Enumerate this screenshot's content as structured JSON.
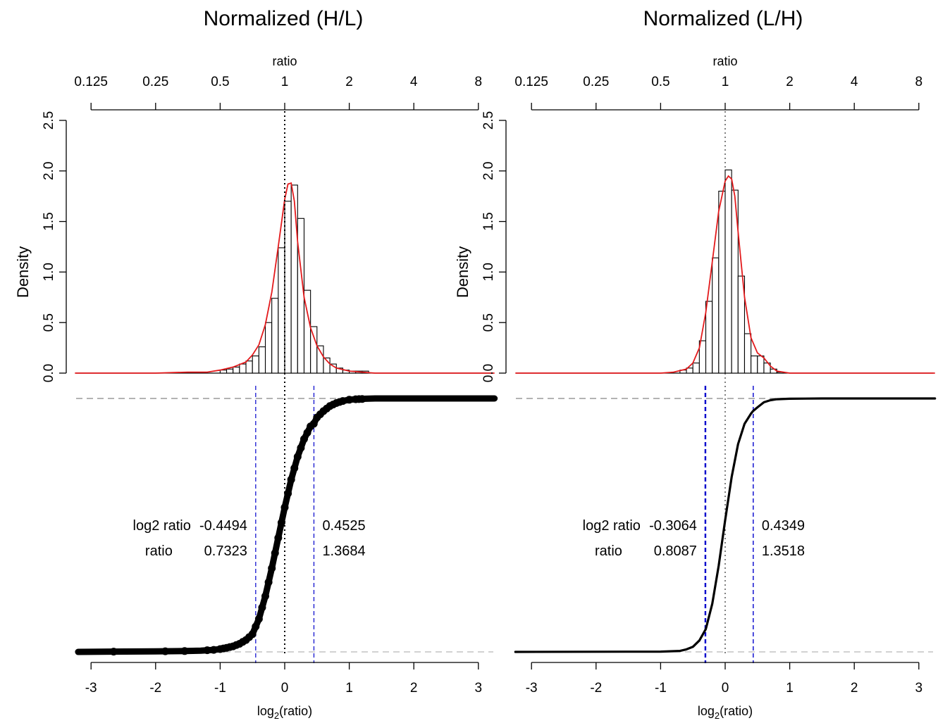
{
  "chart_data": [
    {
      "type": "histogram-with-density",
      "panel": "left",
      "title": "Normalized (H/L)",
      "top_axis_label": "ratio",
      "top_axis_ticks": [
        "0.125",
        "0.25",
        "0.5",
        "1",
        "2",
        "4",
        "8"
      ],
      "xlabel_base": "log",
      "xlabel_sub": "2",
      "xlabel_paren": "(ratio)",
      "x_ticks": [
        -3,
        -2,
        -1,
        0,
        1,
        2,
        3
      ],
      "xlim": [
        -3.25,
        3.25
      ],
      "ylabel": "Density",
      "y_ticks": [
        "0.0",
        "0.5",
        "1.0",
        "1.5",
        "2.0",
        "2.5"
      ],
      "ylim": [
        0,
        2.5
      ],
      "bin_width": 0.1,
      "bin_left_edges": [
        -1.0,
        -0.9,
        -0.8,
        -0.7,
        -0.6,
        -0.5,
        -0.4,
        -0.3,
        -0.2,
        -0.1,
        0.0,
        0.1,
        0.2,
        0.3,
        0.4,
        0.5,
        0.6,
        0.7,
        0.8,
        0.9,
        1.0,
        1.1,
        1.2
      ],
      "hist_density": [
        0.03,
        0.04,
        0.06,
        0.09,
        0.12,
        0.17,
        0.26,
        0.5,
        0.74,
        1.24,
        1.7,
        1.86,
        1.53,
        0.82,
        0.46,
        0.27,
        0.15,
        0.09,
        0.05,
        0.03,
        0.02,
        0.02,
        0.02
      ],
      "density_curve": {
        "x": [
          -3.25,
          -2.0,
          -1.5,
          -1.2,
          -1.0,
          -0.8,
          -0.6,
          -0.5,
          -0.4,
          -0.3,
          -0.2,
          -0.1,
          0.0,
          0.05,
          0.1,
          0.15,
          0.2,
          0.3,
          0.4,
          0.5,
          0.6,
          0.7,
          0.8,
          1.0,
          1.2,
          1.4,
          3.25
        ],
        "y": [
          0.0,
          0.0,
          0.01,
          0.01,
          0.03,
          0.06,
          0.11,
          0.18,
          0.28,
          0.48,
          0.8,
          1.25,
          1.72,
          1.87,
          1.88,
          1.7,
          1.3,
          0.75,
          0.45,
          0.27,
          0.16,
          0.09,
          0.05,
          0.02,
          0.01,
          0.0,
          0.0
        ]
      },
      "density_color": "#e31a1c",
      "cdf_points": {
        "x": [
          -3.2,
          -2.7,
          -2.0,
          -1.6,
          -1.3,
          -1.1,
          -1.0,
          -0.9,
          -0.8,
          -0.7,
          -0.6,
          -0.5,
          -0.45,
          -0.4,
          -0.3,
          -0.2,
          -0.1,
          0.0,
          0.1,
          0.2,
          0.3,
          0.4,
          0.45,
          0.5,
          0.6,
          0.7,
          0.8,
          0.9,
          1.0,
          1.1,
          1.2,
          1.25,
          1.4,
          3.25
        ],
        "y": [
          0.0,
          0.001,
          0.002,
          0.003,
          0.005,
          0.008,
          0.011,
          0.016,
          0.022,
          0.032,
          0.047,
          0.07,
          0.1,
          0.13,
          0.22,
          0.33,
          0.45,
          0.57,
          0.68,
          0.77,
          0.84,
          0.89,
          0.9,
          0.925,
          0.95,
          0.97,
          0.982,
          0.99,
          0.995,
          0.997,
          0.998,
          0.999,
          1.0,
          1.0
        ]
      },
      "scatter_x": [
        -2.65,
        -1.85,
        -1.55,
        -1.2,
        -1.1,
        -1.0,
        -0.95,
        -0.9,
        -0.85,
        -0.8,
        -0.75,
        -0.7,
        -0.65,
        -0.6,
        -0.55,
        -0.5,
        -0.45,
        -0.4,
        -0.35,
        -0.3,
        -0.25,
        -0.2,
        -0.15,
        -0.1,
        -0.05,
        0.0,
        0.05,
        0.1,
        0.15,
        0.2,
        0.25,
        0.3,
        0.35,
        0.4,
        0.45,
        0.5,
        0.55,
        0.6,
        0.65,
        0.7,
        0.75,
        0.8,
        0.85,
        0.9,
        1.0,
        1.1,
        1.15,
        1.2
      ],
      "lower_cut_log2": -0.4494,
      "upper_cut_log2": 0.4525,
      "cut_color": "#0000cc",
      "annotation": {
        "row1_label": "log2 ratio",
        "row1_low": "-0.4494",
        "row1_high": "0.4525",
        "row2_label": "ratio",
        "row2_low": "0.7323",
        "row2_high": "1.3684"
      }
    },
    {
      "type": "histogram-with-density",
      "panel": "right",
      "title": "Normalized (L/H)",
      "top_axis_label": "ratio",
      "top_axis_ticks": [
        "0.125",
        "0.25",
        "0.5",
        "1",
        "2",
        "4",
        "8"
      ],
      "xlabel_base": "log",
      "xlabel_sub": "2",
      "xlabel_paren": "(ratio)",
      "x_ticks": [
        -3,
        -2,
        -1,
        0,
        1,
        2,
        3
      ],
      "xlim": [
        -3.25,
        3.25
      ],
      "ylabel": "Density",
      "y_ticks": [
        "0.0",
        "0.5",
        "1.0",
        "1.5",
        "2.0",
        "2.5"
      ],
      "ylim": [
        0,
        2.5
      ],
      "bin_width": 0.1,
      "bin_left_edges": [
        -0.7,
        -0.6,
        -0.5,
        -0.4,
        -0.3,
        -0.2,
        -0.1,
        0.0,
        0.1,
        0.2,
        0.3,
        0.4,
        0.5,
        0.6,
        0.7,
        0.8
      ],
      "hist_density": [
        0.03,
        0.05,
        0.1,
        0.32,
        0.71,
        1.14,
        1.8,
        2.01,
        1.81,
        0.96,
        0.39,
        0.17,
        0.17,
        0.1,
        0.04,
        0.01
      ],
      "density_curve": {
        "x": [
          -3.25,
          -2.0,
          -1.5,
          -1.0,
          -0.8,
          -0.6,
          -0.5,
          -0.4,
          -0.3,
          -0.2,
          -0.1,
          0.0,
          0.05,
          0.1,
          0.15,
          0.2,
          0.3,
          0.4,
          0.5,
          0.6,
          0.7,
          0.8,
          1.0,
          2.0,
          3.25
        ],
        "y": [
          0.0,
          0.0,
          0.0,
          0.0,
          0.01,
          0.04,
          0.1,
          0.25,
          0.6,
          1.1,
          1.6,
          1.9,
          1.95,
          1.92,
          1.75,
          1.4,
          0.75,
          0.35,
          0.2,
          0.15,
          0.07,
          0.02,
          0.0,
          0.0,
          0.0
        ]
      },
      "density_color": "#e31a1c",
      "cdf_points": {
        "x": [
          -3.25,
          -1.0,
          -0.7,
          -0.6,
          -0.5,
          -0.4,
          -0.3,
          -0.2,
          -0.1,
          0.0,
          0.1,
          0.2,
          0.3,
          0.4,
          0.43,
          0.5,
          0.6,
          0.7,
          0.8,
          1.0,
          1.5,
          3.25
        ],
        "y": [
          0.0,
          0.001,
          0.004,
          0.01,
          0.02,
          0.045,
          0.09,
          0.19,
          0.34,
          0.52,
          0.69,
          0.82,
          0.9,
          0.94,
          0.95,
          0.965,
          0.985,
          0.993,
          0.997,
          0.999,
          1.0,
          1.0
        ]
      },
      "scatter_x": [],
      "lower_cut_log2": -0.3064,
      "upper_cut_log2": 0.4349,
      "cut_color": "#0000cc",
      "annotation": {
        "row1_label": "log2 ratio",
        "row1_low": "-0.3064",
        "row1_high": "0.4349",
        "row2_label": "ratio",
        "row2_low": "0.8087",
        "row2_high": "1.3518"
      }
    }
  ]
}
